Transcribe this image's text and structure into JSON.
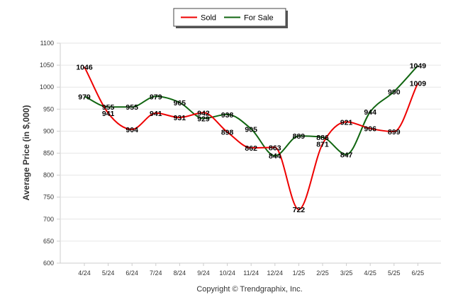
{
  "chart_data": {
    "type": "line",
    "title": "",
    "xlabel": "",
    "ylabel": "Average Price (in $,000)",
    "categories": [
      "4/24",
      "5/24",
      "6/24",
      "7/24",
      "8/24",
      "9/24",
      "10/24",
      "11/24",
      "12/24",
      "1/25",
      "2/25",
      "3/25",
      "4/25",
      "5/25",
      "6/25"
    ],
    "yticks": [
      600,
      650,
      700,
      750,
      800,
      850,
      900,
      950,
      1000,
      1050,
      1100
    ],
    "ylim": [
      600,
      1100
    ],
    "grid": true,
    "legend_position": "top-center",
    "series": [
      {
        "name": "Sold",
        "color": "#ee0000",
        "values": [
          1046,
          941,
          904,
          941,
          931,
          942,
          898,
          862,
          863,
          722,
          871,
          921,
          906,
          899,
          1009
        ],
        "labels": [
          "1046",
          "941",
          "904",
          "941",
          "931",
          "942",
          "898",
          "862",
          "863",
          "722",
          "871",
          "921",
          "906",
          "899",
          "1009"
        ]
      },
      {
        "name": "For Sale",
        "color": "#116611",
        "values": [
          979,
          955,
          955,
          979,
          965,
          929,
          938,
          905,
          844,
          889,
          886,
          847,
          944,
          990,
          1049
        ],
        "labels": [
          "979",
          "955",
          "955",
          "979",
          "965",
          "929",
          "938",
          "905",
          "844",
          "889",
          "886",
          "847",
          "944",
          "990",
          "1049"
        ]
      }
    ]
  },
  "footer": {
    "copyright": "Copyright © Trendgraphix, Inc."
  }
}
